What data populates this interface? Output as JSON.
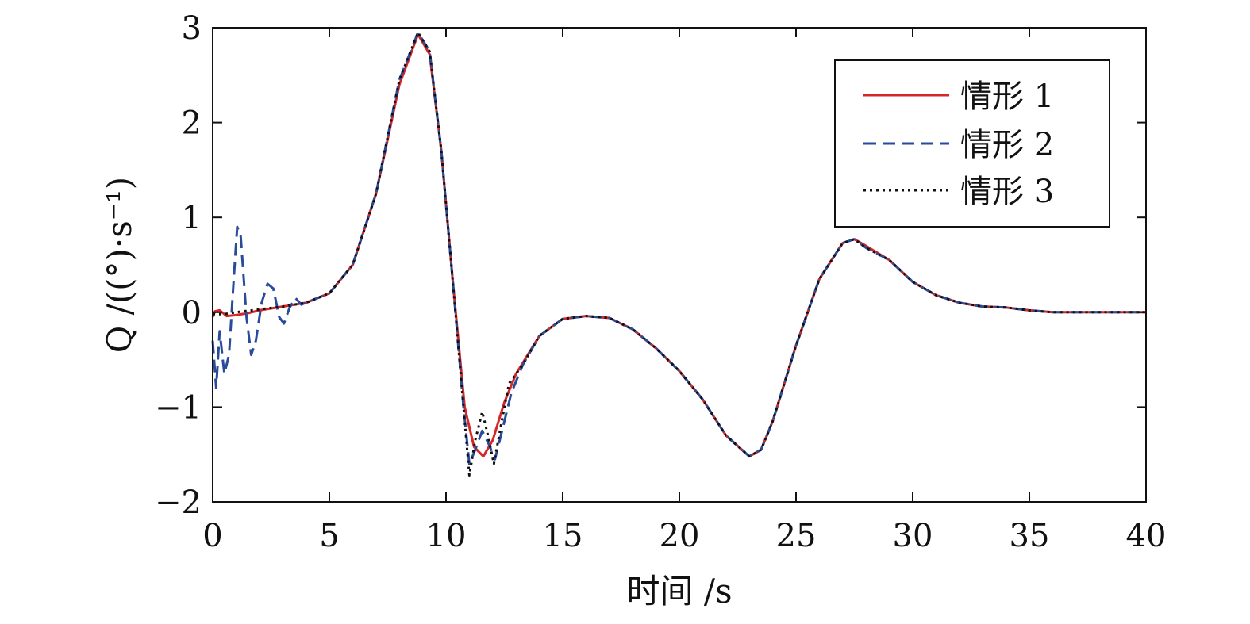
{
  "chart_data": {
    "type": "line",
    "title": "",
    "xlabel": "时间 /s",
    "ylabel": "Q /((°)·s⁻¹)",
    "xlim": [
      0,
      40
    ],
    "ylim": [
      -2,
      3
    ],
    "xticks": [
      0,
      5,
      10,
      15,
      20,
      25,
      30,
      35,
      40
    ],
    "xtick_labels": [
      "0",
      "5",
      "10",
      "15",
      "20",
      "25",
      "30",
      "35",
      "40"
    ],
    "yticks": [
      -2,
      -1,
      0,
      1,
      2,
      3
    ],
    "ytick_labels": [
      "−2",
      "−1",
      "0",
      "1",
      "2",
      "3"
    ],
    "grid": false,
    "legend_position": "top-right",
    "series": [
      {
        "name": "情形 1",
        "color": "#d62728",
        "style": "solid",
        "points": [
          [
            0,
            -0.05
          ],
          [
            0.1,
            0.01
          ],
          [
            0.3,
            0.02
          ],
          [
            0.6,
            -0.04
          ],
          [
            1,
            -0.03
          ],
          [
            1.5,
            -0.01
          ],
          [
            2,
            0.02
          ],
          [
            3,
            0.06
          ],
          [
            4,
            0.1
          ],
          [
            5,
            0.2
          ],
          [
            6,
            0.5
          ],
          [
            7,
            1.25
          ],
          [
            8,
            2.4
          ],
          [
            8.8,
            2.93
          ],
          [
            9.3,
            2.72
          ],
          [
            9.8,
            1.7
          ],
          [
            10.3,
            0.3
          ],
          [
            10.8,
            -1.0
          ],
          [
            11.2,
            -1.42
          ],
          [
            11.6,
            -1.52
          ],
          [
            12.0,
            -1.35
          ],
          [
            12.5,
            -0.95
          ],
          [
            13,
            -0.65
          ],
          [
            14,
            -0.25
          ],
          [
            15,
            -0.07
          ],
          [
            16,
            -0.04
          ],
          [
            17,
            -0.06
          ],
          [
            18,
            -0.18
          ],
          [
            19,
            -0.38
          ],
          [
            20,
            -0.62
          ],
          [
            21,
            -0.92
          ],
          [
            22,
            -1.3
          ],
          [
            23,
            -1.52
          ],
          [
            23.5,
            -1.45
          ],
          [
            24,
            -1.15
          ],
          [
            25,
            -0.35
          ],
          [
            26,
            0.35
          ],
          [
            27,
            0.73
          ],
          [
            27.5,
            0.77
          ],
          [
            28,
            0.7
          ],
          [
            29,
            0.55
          ],
          [
            30,
            0.32
          ],
          [
            31,
            0.18
          ],
          [
            32,
            0.1
          ],
          [
            33,
            0.06
          ],
          [
            34,
            0.05
          ],
          [
            35,
            0.02
          ],
          [
            36,
            0.0
          ],
          [
            40,
            0.0
          ]
        ]
      },
      {
        "name": "情形 2",
        "color": "#2a4a9a",
        "style": "dashed",
        "points": [
          [
            0,
            -0.3
          ],
          [
            0.15,
            -0.8
          ],
          [
            0.3,
            -0.2
          ],
          [
            0.5,
            -0.65
          ],
          [
            0.7,
            -0.45
          ],
          [
            0.9,
            0.35
          ],
          [
            1.05,
            0.9
          ],
          [
            1.2,
            0.8
          ],
          [
            1.45,
            -0.05
          ],
          [
            1.65,
            -0.45
          ],
          [
            1.85,
            -0.3
          ],
          [
            2.1,
            0.1
          ],
          [
            2.35,
            0.3
          ],
          [
            2.6,
            0.25
          ],
          [
            2.85,
            -0.05
          ],
          [
            3.05,
            -0.12
          ],
          [
            3.3,
            0.05
          ],
          [
            3.55,
            0.15
          ],
          [
            3.8,
            0.08
          ],
          [
            4.2,
            0.12
          ],
          [
            5,
            0.2
          ],
          [
            6,
            0.5
          ],
          [
            7,
            1.25
          ],
          [
            8,
            2.45
          ],
          [
            8.8,
            2.95
          ],
          [
            9.3,
            2.75
          ],
          [
            9.8,
            1.7
          ],
          [
            10.3,
            0.3
          ],
          [
            10.75,
            -1.0
          ],
          [
            11.0,
            -1.6
          ],
          [
            11.25,
            -1.45
          ],
          [
            11.55,
            -1.25
          ],
          [
            11.85,
            -1.4
          ],
          [
            12.1,
            -1.55
          ],
          [
            12.4,
            -1.25
          ],
          [
            12.8,
            -0.85
          ],
          [
            13.3,
            -0.55
          ],
          [
            14,
            -0.25
          ],
          [
            15,
            -0.07
          ],
          [
            16,
            -0.04
          ],
          [
            17,
            -0.06
          ],
          [
            18,
            -0.18
          ],
          [
            19,
            -0.38
          ],
          [
            20,
            -0.62
          ],
          [
            21,
            -0.92
          ],
          [
            22,
            -1.3
          ],
          [
            23,
            -1.52
          ],
          [
            23.5,
            -1.45
          ],
          [
            24,
            -1.15
          ],
          [
            25,
            -0.35
          ],
          [
            26,
            0.35
          ],
          [
            27,
            0.73
          ],
          [
            27.5,
            0.77
          ],
          [
            28,
            0.68
          ],
          [
            29,
            0.55
          ],
          [
            30,
            0.32
          ],
          [
            31,
            0.18
          ],
          [
            32,
            0.1
          ],
          [
            33,
            0.06
          ],
          [
            34,
            0.05
          ],
          [
            35,
            0.02
          ],
          [
            36,
            0.0
          ],
          [
            40,
            0.0
          ]
        ]
      },
      {
        "name": "情形 3",
        "color": "#111111",
        "style": "dotted",
        "points": [
          [
            0,
            -0.02
          ],
          [
            0.5,
            -0.02
          ],
          [
            1,
            0.0
          ],
          [
            2,
            0.03
          ],
          [
            3,
            0.06
          ],
          [
            4,
            0.1
          ],
          [
            5,
            0.2
          ],
          [
            6,
            0.5
          ],
          [
            7,
            1.25
          ],
          [
            8,
            2.45
          ],
          [
            8.8,
            2.95
          ],
          [
            9.3,
            2.75
          ],
          [
            9.8,
            1.7
          ],
          [
            10.3,
            0.3
          ],
          [
            10.75,
            -1.0
          ],
          [
            11.0,
            -1.72
          ],
          [
            11.25,
            -1.35
          ],
          [
            11.55,
            -1.05
          ],
          [
            11.8,
            -1.3
          ],
          [
            12.05,
            -1.6
          ],
          [
            12.35,
            -1.2
          ],
          [
            12.7,
            -0.75
          ],
          [
            13.3,
            -0.55
          ],
          [
            14,
            -0.25
          ],
          [
            15,
            -0.07
          ],
          [
            16,
            -0.04
          ],
          [
            17,
            -0.06
          ],
          [
            18,
            -0.18
          ],
          [
            19,
            -0.38
          ],
          [
            20,
            -0.62
          ],
          [
            21,
            -0.92
          ],
          [
            22,
            -1.3
          ],
          [
            23,
            -1.52
          ],
          [
            23.5,
            -1.45
          ],
          [
            24,
            -1.15
          ],
          [
            25,
            -0.35
          ],
          [
            26,
            0.35
          ],
          [
            27,
            0.73
          ],
          [
            27.5,
            0.77
          ],
          [
            28,
            0.68
          ],
          [
            29,
            0.55
          ],
          [
            30,
            0.32
          ],
          [
            31,
            0.18
          ],
          [
            32,
            0.1
          ],
          [
            33,
            0.06
          ],
          [
            34,
            0.05
          ],
          [
            35,
            0.02
          ],
          [
            36,
            0.0
          ],
          [
            40,
            0.0
          ]
        ]
      }
    ]
  }
}
